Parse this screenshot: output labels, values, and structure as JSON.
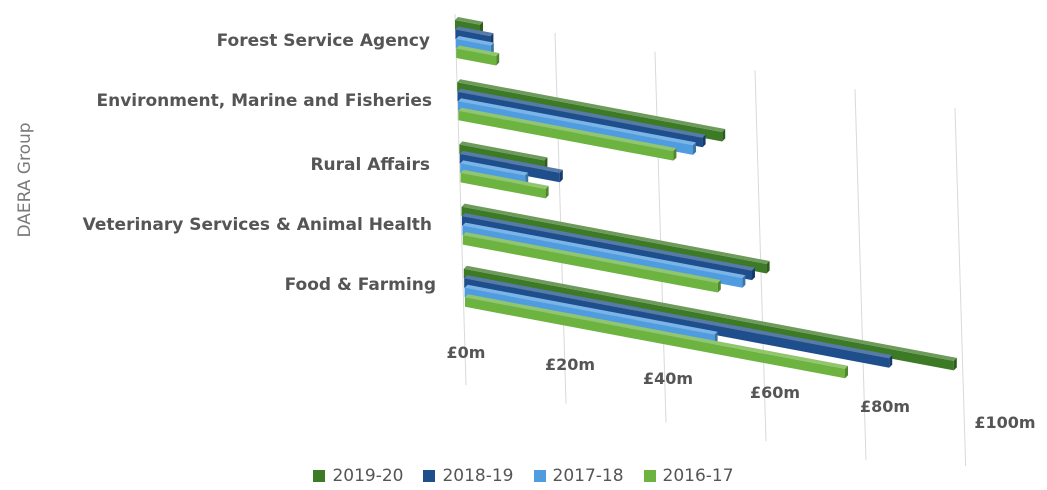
{
  "chart_data": {
    "type": "bar",
    "orientation": "horizontal",
    "perspective": "3d",
    "ylabel": "DAERA Group",
    "categories": [
      "Forest Service Agency",
      "Environment, Marine and Fisheries",
      "Rural Affairs",
      "Veterinary Services & Animal Health",
      "Food & Farming"
    ],
    "x_ticks": [
      "£0m",
      "£20m",
      "£40m",
      "£60m",
      "£80m",
      "£100m"
    ],
    "xlim": [
      0,
      100
    ],
    "unit": "£m",
    "grid": true,
    "legend_position": "bottom",
    "series": [
      {
        "name": "2019-20",
        "color": "#3d7a26",
        "values": [
          5,
          53,
          17,
          61,
          98
        ]
      },
      {
        "name": "2018-19",
        "color": "#1f4e8c",
        "values": [
          7,
          49,
          20,
          58,
          85
        ]
      },
      {
        "name": "2017-18",
        "color": "#4f9ce0",
        "values": [
          7,
          47,
          13,
          56,
          50
        ]
      },
      {
        "name": "2016-17",
        "color": "#6cb33f",
        "values": [
          8,
          43,
          17,
          51,
          76
        ]
      }
    ]
  }
}
